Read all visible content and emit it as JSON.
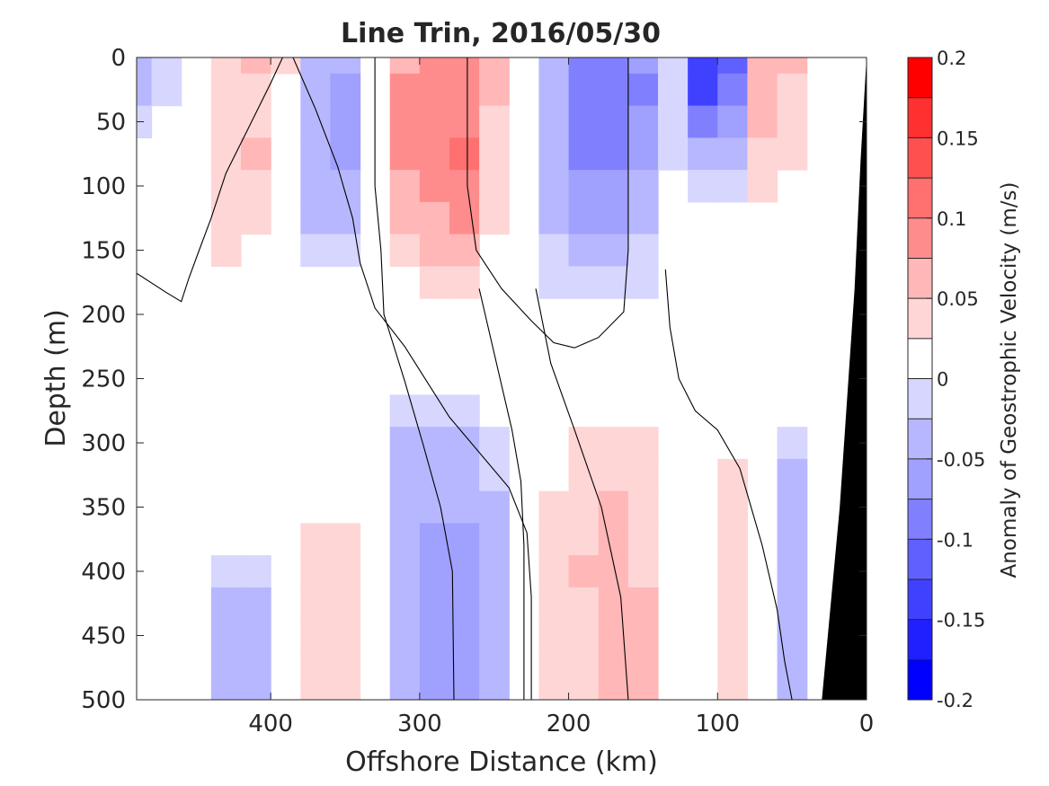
{
  "chart_data": {
    "type": "heatmap",
    "title": "Line Trin, 2016/05/30",
    "xlabel": "Offshore Distance (km)",
    "ylabel": "Depth (m)",
    "xlim": [
      490,
      0
    ],
    "ylim": [
      0,
      500
    ],
    "x_reversed": true,
    "y_reversed": true,
    "xticks": [
      400,
      300,
      200,
      100,
      0
    ],
    "xtick_labels": [
      "400",
      "300",
      "200",
      "100",
      "0"
    ],
    "yticks": [
      0,
      50,
      100,
      150,
      200,
      250,
      300,
      350,
      400,
      450,
      500
    ],
    "ytick_labels": [
      "0",
      "50",
      "100",
      "150",
      "200",
      "250",
      "300",
      "350",
      "400",
      "450",
      "500"
    ],
    "colorbar": {
      "label": "Anomaly of Geostrophic Velocity (m/s)",
      "range": [
        -0.2,
        0.2
      ],
      "ticks": [
        0.2,
        0.15,
        0.1,
        0.05,
        0,
        -0.05,
        -0.1,
        -0.15,
        -0.2
      ],
      "tick_labels": [
        "0.2",
        "0.15",
        "0.1",
        "0.05",
        "0",
        "-0.05",
        "-0.1",
        "-0.15",
        "-0.2"
      ],
      "bin_edges": [
        -0.2,
        -0.175,
        -0.15,
        -0.125,
        -0.1,
        -0.075,
        -0.05,
        -0.025,
        0,
        0.025,
        0.05,
        0.075,
        0.1,
        0.125,
        0.15,
        0.175,
        0.2
      ],
      "colors": [
        "#0000ff",
        "#2020ff",
        "#4040ff",
        "#6060ff",
        "#8080ff",
        "#a0a0ff",
        "#b7b7ff",
        "#d6d6ff",
        "#ffffff",
        "#ffd6d6",
        "#ffb7b7",
        "#ff8c8c",
        "#ff7070",
        "#ff5050",
        "#ff3030",
        "#ff0000"
      ]
    },
    "contour_levels": [
      -0.15,
      -0.125,
      -0.1,
      -0.075,
      -0.05,
      -0.025,
      0.025,
      0.05,
      0.075,
      0.1,
      0.125
    ],
    "grid": false,
    "data": {
      "x": [
        490,
        470,
        450,
        430,
        410,
        390,
        370,
        350,
        330,
        310,
        290,
        270,
        250,
        230,
        210,
        190,
        170,
        150,
        130,
        110,
        90,
        70,
        50,
        30,
        10,
        0
      ],
      "y": [
        0,
        25,
        50,
        75,
        100,
        125,
        150,
        175,
        200,
        225,
        250,
        275,
        300,
        325,
        350,
        375,
        400,
        425,
        450,
        475,
        500
      ],
      "z": [
        [
          -0.028,
          -0.02,
          0.0,
          0.035,
          0.05,
          0.025,
          -0.04,
          -0.05,
          0.0,
          0.07,
          0.085,
          0.085,
          0.05,
          0.0,
          -0.04,
          -0.08,
          -0.09,
          -0.075,
          -0.01,
          -0.15,
          -0.12,
          0.07,
          0.05,
          0.0,
          null,
          null
        ],
        [
          -0.028,
          -0.02,
          0.0,
          0.035,
          0.045,
          0.02,
          -0.04,
          -0.055,
          0.0,
          0.075,
          0.09,
          0.09,
          0.05,
          0.0,
          -0.04,
          -0.09,
          -0.1,
          -0.08,
          -0.01,
          -0.13,
          -0.1,
          0.065,
          0.045,
          0.0,
          null,
          null
        ],
        [
          -0.01,
          0.0,
          0.005,
          0.04,
          0.04,
          0.015,
          -0.05,
          -0.06,
          0.0,
          0.08,
          0.095,
          0.095,
          0.045,
          0.0,
          -0.03,
          -0.09,
          -0.095,
          -0.07,
          -0.01,
          -0.09,
          -0.07,
          0.06,
          0.04,
          0.0,
          null,
          null
        ],
        [
          0.0,
          0.0,
          0.01,
          0.045,
          0.055,
          0.015,
          -0.05,
          -0.055,
          0.0,
          0.075,
          0.095,
          0.1,
          0.04,
          0.0,
          -0.03,
          -0.08,
          -0.085,
          -0.06,
          -0.005,
          -0.05,
          -0.04,
          0.04,
          0.03,
          0.0,
          null,
          null
        ],
        [
          0.0,
          0.0,
          0.005,
          0.04,
          0.04,
          0.01,
          -0.04,
          -0.04,
          0.0,
          0.065,
          0.085,
          0.09,
          0.035,
          0.0,
          -0.03,
          -0.07,
          -0.07,
          -0.05,
          0.0,
          -0.01,
          -0.01,
          0.025,
          0.02,
          0.0,
          null,
          null
        ],
        [
          0.0,
          0.0,
          0.0,
          0.035,
          0.03,
          0.005,
          -0.03,
          -0.03,
          0.0,
          0.05,
          0.07,
          0.075,
          0.03,
          0.0,
          -0.03,
          -0.055,
          -0.055,
          -0.04,
          0.0,
          0.0,
          0.0,
          0.01,
          0.01,
          0.0,
          null,
          null
        ],
        [
          0.0,
          0.0,
          0.0,
          0.03,
          0.005,
          0.0,
          -0.01,
          -0.01,
          0.0,
          0.035,
          0.05,
          0.055,
          0.02,
          0.0,
          -0.02,
          -0.03,
          -0.03,
          -0.02,
          0.0,
          0.0,
          0.0,
          0.0,
          0.0,
          0.0,
          null,
          null
        ],
        [
          0.0,
          0.0,
          0.0,
          0.0,
          0.0,
          0.0,
          0.0,
          0.0,
          0.0,
          0.02,
          0.035,
          0.04,
          0.01,
          0.0,
          -0.01,
          -0.01,
          -0.01,
          -0.005,
          0.0,
          0.0,
          0.0,
          0.0,
          0.0,
          0.0,
          null,
          null
        ],
        [
          0.0,
          0.0,
          0.0,
          0.0,
          0.0,
          0.0,
          0.0,
          0.0,
          0.0,
          0.005,
          0.015,
          0.015,
          0.005,
          0.0,
          0.0,
          0.0,
          0.0,
          0.0,
          0.0,
          0.0,
          0.0,
          0.0,
          0.0,
          0.0,
          null,
          null
        ],
        [
          0.0,
          0.0,
          0.0,
          0.0,
          0.0,
          0.0,
          0.0,
          0.0,
          0.0,
          0.0,
          0.0,
          0.0,
          0.0,
          0.0,
          0.0,
          0.0,
          0.0,
          0.0,
          0.0,
          0.0,
          0.0,
          0.0,
          0.0,
          0.0,
          0.0,
          null
        ],
        [
          0.0,
          0.0,
          0.0,
          0.0,
          0.0,
          0.0,
          0.0,
          0.0,
          0.0,
          0.0,
          0.0,
          0.0,
          0.0,
          0.0,
          0.0,
          0.0,
          0.0,
          0.0,
          0.0,
          0.0,
          0.0,
          0.0,
          0.0,
          0.0,
          0.0,
          null
        ],
        [
          0.0,
          0.0,
          0.0,
          0.0,
          0.0,
          0.0,
          0.0,
          0.0,
          0.0,
          -0.01,
          -0.02,
          -0.015,
          0.0,
          0.0,
          0.0,
          0.01,
          0.02,
          0.015,
          0.0,
          0.0,
          0.0,
          0.0,
          0.0,
          0.0,
          0.0,
          null
        ],
        [
          0.0,
          0.0,
          0.0,
          0.0,
          0.0,
          0.0,
          0.0,
          0.0,
          0.0,
          -0.03,
          -0.04,
          -0.035,
          -0.02,
          0.0,
          0.01,
          0.03,
          0.04,
          0.035,
          0.0,
          0.0,
          0.01,
          0.0,
          -0.01,
          0.0,
          0.0,
          null
        ],
        [
          0.0,
          0.0,
          0.0,
          0.0,
          0.0,
          0.0,
          0.0,
          0.0,
          0.0,
          -0.04,
          -0.045,
          -0.04,
          -0.025,
          0.0,
          0.02,
          0.04,
          0.045,
          0.04,
          0.005,
          0.0,
          0.03,
          0.0,
          -0.03,
          0.0,
          0.0,
          null
        ],
        [
          0.0,
          0.0,
          0.0,
          0.0,
          0.0,
          0.0,
          0.005,
          0.005,
          0.0,
          -0.045,
          -0.05,
          -0.045,
          -0.03,
          0.0,
          0.025,
          0.045,
          0.05,
          0.045,
          0.005,
          0.0,
          0.03,
          0.0,
          -0.03,
          0.0,
          0.0,
          null
        ],
        [
          0.0,
          0.0,
          0.0,
          0.0,
          0.0,
          0.0,
          0.03,
          0.03,
          0.0,
          -0.045,
          -0.06,
          -0.055,
          -0.03,
          0.0,
          0.025,
          0.045,
          0.05,
          0.045,
          0.005,
          0.0,
          0.03,
          0.0,
          -0.03,
          0.0,
          0.0,
          null
        ],
        [
          0.0,
          0.0,
          0.0,
          -0.01,
          -0.01,
          0.0,
          0.035,
          0.035,
          0.0,
          -0.045,
          -0.065,
          -0.06,
          -0.03,
          0.0,
          0.03,
          0.05,
          0.055,
          0.045,
          0.005,
          0.0,
          0.035,
          0.0,
          -0.03,
          0.0,
          0.0,
          null
        ],
        [
          0.0,
          0.0,
          0.0,
          -0.03,
          -0.03,
          0.0,
          0.04,
          0.04,
          0.0,
          -0.05,
          -0.07,
          -0.065,
          -0.035,
          0.0,
          0.03,
          0.04,
          0.06,
          0.05,
          0.01,
          0.0,
          0.04,
          0.0,
          -0.035,
          0.0,
          0.0,
          null
        ],
        [
          0.0,
          0.0,
          0.0,
          -0.035,
          -0.035,
          0.0,
          0.045,
          0.045,
          0.0,
          -0.05,
          -0.075,
          -0.07,
          -0.035,
          0.0,
          0.035,
          0.03,
          0.06,
          0.055,
          0.015,
          0.0,
          0.04,
          0.0,
          -0.035,
          0.0,
          0.0,
          null
        ],
        [
          0.0,
          0.0,
          0.0,
          -0.035,
          -0.04,
          0.0,
          0.045,
          0.045,
          0.0,
          -0.05,
          -0.075,
          -0.07,
          -0.035,
          0.0,
          0.035,
          0.035,
          0.06,
          0.055,
          0.02,
          0.0,
          0.04,
          0.0,
          -0.035,
          0.0,
          null,
          null
        ],
        [
          0.0,
          0.0,
          0.0,
          -0.035,
          -0.04,
          0.0,
          0.045,
          0.045,
          0.0,
          -0.05,
          -0.075,
          -0.07,
          -0.035,
          0.0,
          0.035,
          0.035,
          0.06,
          0.055,
          0.02,
          0.0,
          0.04,
          0.0,
          -0.035,
          0.0,
          null,
          null
        ]
      ]
    },
    "zero_contour_lines": [
      {
        "points": [
          [
            490,
            168
          ],
          [
            470,
            183
          ],
          [
            460,
            190
          ],
          [
            455,
            172
          ],
          [
            448,
            150
          ],
          [
            440,
            125
          ],
          [
            430,
            90
          ],
          [
            415,
            55
          ],
          [
            400,
            20
          ],
          [
            392,
            0
          ]
        ]
      },
      {
        "points": [
          [
            385,
            0
          ],
          [
            370,
            40
          ],
          [
            355,
            85
          ],
          [
            345,
            125
          ],
          [
            340,
            160
          ],
          [
            330,
            195
          ],
          [
            310,
            225
          ],
          [
            280,
            280
          ],
          [
            240,
            335
          ],
          [
            228,
            370
          ],
          [
            225,
            420
          ],
          [
            225,
            500
          ]
        ]
      },
      {
        "points": [
          [
            330,
            0
          ],
          [
            330,
            100
          ],
          [
            326,
            150
          ],
          [
            324,
            200
          ],
          [
            310,
            252
          ],
          [
            298,
            300
          ],
          [
            286,
            350
          ],
          [
            278,
            400
          ],
          [
            277,
            500
          ]
        ]
      },
      {
        "points": [
          [
            268,
            0
          ],
          [
            268,
            50
          ],
          [
            268,
            100
          ],
          [
            262,
            150
          ],
          [
            245,
            180
          ],
          [
            225,
            205
          ],
          [
            210,
            222
          ],
          [
            196,
            226
          ],
          [
            180,
            218
          ],
          [
            163,
            198
          ],
          [
            160,
            150
          ],
          [
            160,
            100
          ],
          [
            160,
            50
          ],
          [
            160,
            0
          ]
        ]
      },
      {
        "points": [
          [
            260,
            180
          ],
          [
            248,
            240
          ],
          [
            238,
            290
          ],
          [
            232,
            330
          ],
          [
            230,
            380
          ],
          [
            230,
            430
          ],
          [
            230,
            500
          ]
        ]
      },
      {
        "points": [
          [
            222,
            180
          ],
          [
            212,
            238
          ],
          [
            196,
            290
          ],
          [
            178,
            350
          ],
          [
            165,
            420
          ],
          [
            160,
            500
          ]
        ]
      },
      {
        "points": [
          [
            135,
            165
          ],
          [
            132,
            210
          ],
          [
            126,
            250
          ],
          [
            115,
            275
          ],
          [
            100,
            290
          ],
          [
            85,
            320
          ],
          [
            70,
            380
          ],
          [
            60,
            430
          ],
          [
            55,
            470
          ],
          [
            50,
            500
          ]
        ]
      }
    ],
    "seafloor": {
      "label": "",
      "polygon_x": [
        30,
        18,
        8,
        4,
        0,
        0
      ],
      "polygon_y": [
        500,
        350,
        180,
        80,
        0,
        500
      ]
    }
  }
}
